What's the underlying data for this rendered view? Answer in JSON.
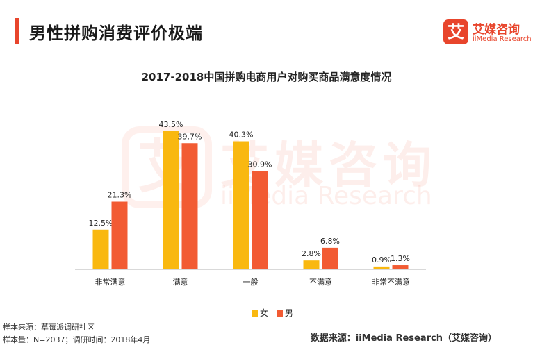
{
  "header": {
    "page_title": "男性拼购消费评价极端",
    "accent_color": "#e8452c"
  },
  "logo": {
    "mark": "艾",
    "name_cn": "艾媒咨询",
    "name_en": "iiMedia Research",
    "color": "#e8452c"
  },
  "watermark": {
    "mark": "艾",
    "text_cn": "艾媒咨询",
    "text_en": "iiMedia Research"
  },
  "chart_data": {
    "type": "bar",
    "title": "2017-2018中国拼购电商用户对购买商品满意度情况",
    "categories": [
      "非常满意",
      "满意",
      "一般",
      "不满意",
      "非常不满意"
    ],
    "series": [
      {
        "name": "女",
        "color": "#f9b810",
        "values": [
          12.5,
          43.5,
          40.3,
          2.8,
          0.9
        ]
      },
      {
        "name": "男",
        "color": "#f25b33",
        "values": [
          21.3,
          39.7,
          30.9,
          6.8,
          1.3
        ]
      }
    ],
    "value_suffix": "%",
    "ylim": [
      0,
      45
    ],
    "grid": false,
    "legend_position": "bottom"
  },
  "footer": {
    "sample_source": "样本来源：草莓派调研社区",
    "sample_detail": "样本量：N=2037；调研时间：2018年4月",
    "data_source": "数据来源：iiMedia Research（艾媒咨询）"
  }
}
